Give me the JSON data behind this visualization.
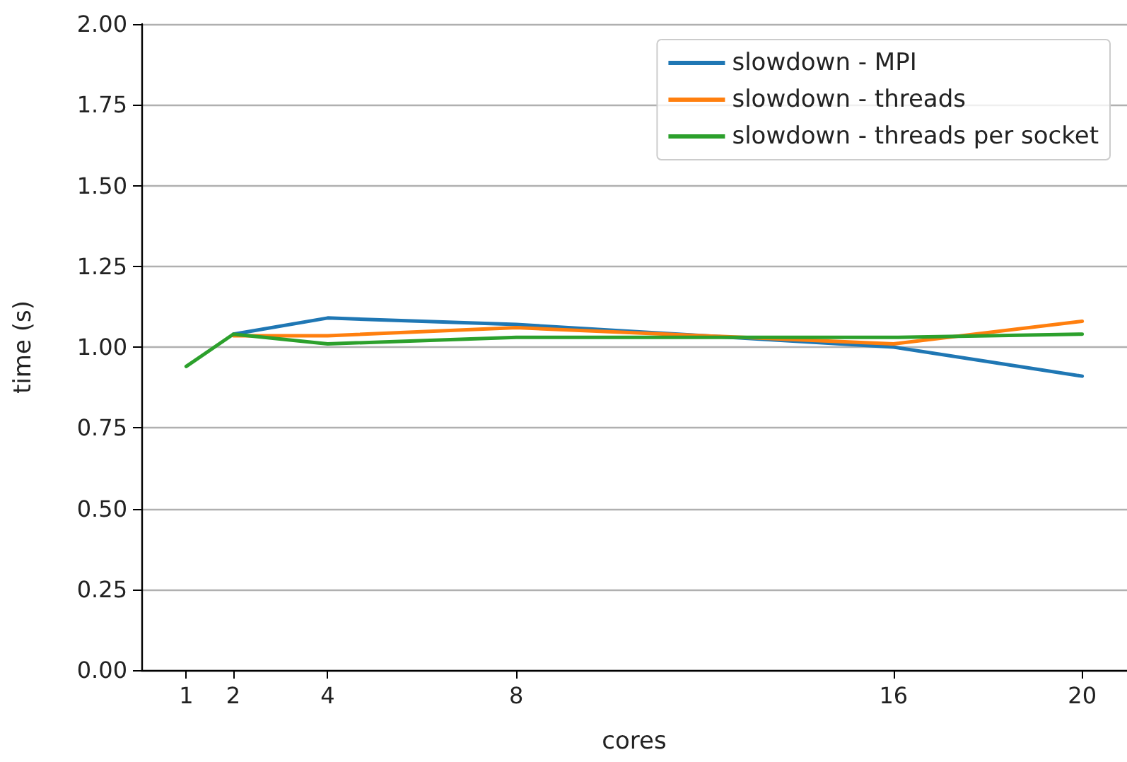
{
  "chart_data": {
    "type": "line",
    "xlabel": "cores",
    "ylabel": "time (s)",
    "x": [
      1,
      2,
      4,
      8,
      16,
      20
    ],
    "series": [
      {
        "name": "slowdown - MPI",
        "color": "#1f77b4",
        "values": [
          null,
          1.04,
          1.09,
          1.07,
          1.0,
          0.91
        ]
      },
      {
        "name": "slowdown - threads",
        "color": "#ff7f0e",
        "values": [
          null,
          1.035,
          1.035,
          1.06,
          1.01,
          1.08
        ]
      },
      {
        "name": "slowdown - threads per socket",
        "color": "#2ca02c",
        "values": [
          0.94,
          1.04,
          1.01,
          1.03,
          1.03,
          1.04
        ]
      }
    ],
    "xlim": [
      0.05,
      20.95
    ],
    "xticks": [
      1,
      2,
      4,
      8,
      16,
      20
    ],
    "ylim": [
      0,
      2
    ],
    "yticks": [
      {
        "value": 0,
        "label": "0.00"
      },
      0.25,
      {
        "value": 0.5,
        "label": "0.50"
      },
      0.75,
      {
        "value": 1,
        "label": "1.00"
      },
      1.25,
      {
        "value": 1.5,
        "label": "1.50"
      },
      1.75,
      {
        "value": 2,
        "label": "2.00"
      }
    ],
    "grid": "y",
    "legend": "top right",
    "marker": "none",
    "line_style": "solid"
  }
}
